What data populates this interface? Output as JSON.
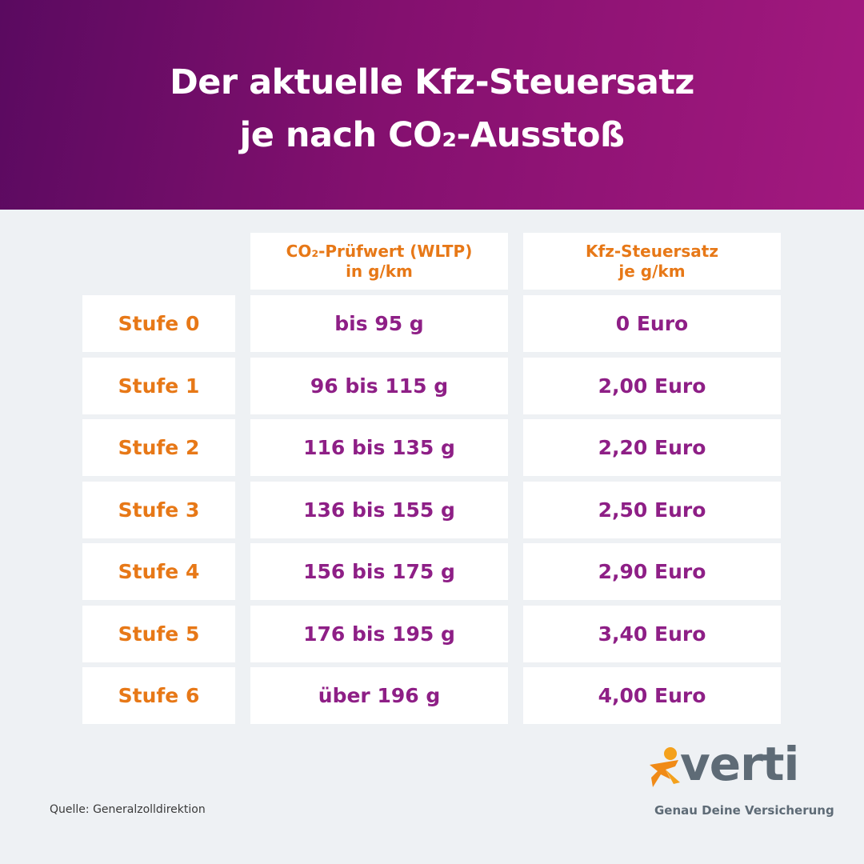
{
  "title": {
    "line1": "Der aktuelle Kfz-Steuersatz",
    "line2": "je nach CO₂-Ausstoß"
  },
  "table": {
    "headers": [
      {
        "line1": "CO₂-Prüfwert (WLTP)",
        "line2": "in g/km"
      },
      {
        "line1": "Kfz-Steuersatz",
        "line2": "je g/km"
      }
    ],
    "rows": [
      {
        "stufe": "Stufe 0",
        "range": "bis 95 g",
        "rate": "0 Euro"
      },
      {
        "stufe": "Stufe 1",
        "range": "96 bis 115 g",
        "rate": "2,00 Euro"
      },
      {
        "stufe": "Stufe 2",
        "range": "116 bis 135 g",
        "rate": "2,20 Euro"
      },
      {
        "stufe": "Stufe 3",
        "range": "136 bis 155 g",
        "rate": "2,50 Euro"
      },
      {
        "stufe": "Stufe 4",
        "range": "156 bis 175 g",
        "rate": "2,90 Euro"
      },
      {
        "stufe": "Stufe 5",
        "range": "176 bis 195 g",
        "rate": "3,40 Euro"
      },
      {
        "stufe": "Stufe 6",
        "range": "über 196 g",
        "rate": "4,00 Euro"
      }
    ]
  },
  "footer": {
    "source": "Quelle: Generalzolldirektion",
    "brand": "verti",
    "tagline": "Genau Deine Versicherung"
  },
  "colors": {
    "header_start": "#5a0a60",
    "header_end": "#a3197f",
    "accent_orange": "#e77817",
    "value_purple": "#8e1f86",
    "brand_gray": "#5e6b76"
  }
}
